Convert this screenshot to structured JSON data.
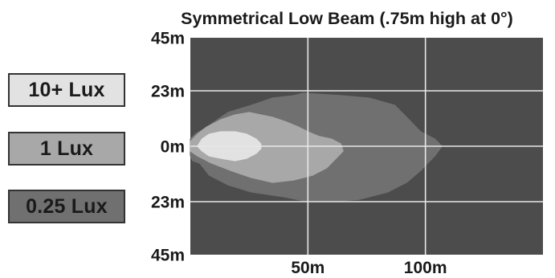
{
  "chart_data": {
    "type": "heatmap",
    "title": "Symmetrical Low Beam (.75m high at 0°)",
    "xlabel": "",
    "ylabel": "",
    "xlim": [
      0,
      150
    ],
    "ylim": [
      -45,
      45
    ],
    "x_ticks": [
      {
        "value": 50,
        "label": "50m"
      },
      {
        "value": 100,
        "label": "100m"
      }
    ],
    "y_ticks": [
      {
        "value": 45,
        "label": "45m"
      },
      {
        "value": 23,
        "label": "23m"
      },
      {
        "value": 0,
        "label": "0m"
      },
      {
        "value": -23,
        "label": "23m"
      },
      {
        "value": -45,
        "label": "45m"
      }
    ],
    "grid": true,
    "legend_position": "left",
    "background_color": "#4c4c4c",
    "grid_color": "#e8e8e8",
    "series": [
      {
        "name": "0.25 Lux",
        "color": "#707070",
        "outline": [
          [
            0,
            -4
          ],
          [
            1,
            -6
          ],
          [
            4,
            -7
          ],
          [
            8,
            -12
          ],
          [
            16,
            -16
          ],
          [
            26,
            -19
          ],
          [
            40,
            -21
          ],
          [
            50,
            -23
          ],
          [
            60,
            -23
          ],
          [
            72,
            -22
          ],
          [
            84,
            -19
          ],
          [
            92,
            -15
          ],
          [
            98,
            -10
          ],
          [
            104,
            -4
          ],
          [
            107,
            0
          ],
          [
            104,
            3
          ],
          [
            98,
            6
          ],
          [
            92,
            12
          ],
          [
            87,
            17
          ],
          [
            76,
            20
          ],
          [
            64,
            21
          ],
          [
            48,
            22
          ],
          [
            44,
            21
          ],
          [
            35,
            20
          ],
          [
            26,
            17
          ],
          [
            16,
            14
          ],
          [
            7,
            8
          ],
          [
            2,
            5
          ],
          [
            0,
            3
          ]
        ]
      },
      {
        "name": "1 Lux",
        "color": "#a8a8a8",
        "outline": [
          [
            0,
            -2
          ],
          [
            3,
            -4
          ],
          [
            9,
            -7
          ],
          [
            17,
            -10
          ],
          [
            26,
            -13
          ],
          [
            35,
            -15
          ],
          [
            44,
            -14
          ],
          [
            52,
            -12
          ],
          [
            58,
            -9
          ],
          [
            62,
            -5
          ],
          [
            65,
            -2
          ],
          [
            64,
            1
          ],
          [
            60,
            3
          ],
          [
            55,
            4
          ],
          [
            50,
            6
          ],
          [
            46,
            8
          ],
          [
            41,
            10
          ],
          [
            35,
            12
          ],
          [
            30,
            13
          ],
          [
            25,
            14
          ],
          [
            19,
            13
          ],
          [
            13,
            11
          ],
          [
            7,
            8
          ],
          [
            3,
            5
          ],
          [
            0,
            2
          ]
        ]
      },
      {
        "name": "10+ Lux",
        "color": "#e2e2e2",
        "outline": [
          [
            3,
            0
          ],
          [
            5,
            -2
          ],
          [
            8,
            -4
          ],
          [
            13,
            -5
          ],
          [
            19,
            -6
          ],
          [
            24,
            -5
          ],
          [
            28,
            -3
          ],
          [
            30,
            -1
          ],
          [
            30,
            1
          ],
          [
            28,
            3
          ],
          [
            24,
            5
          ],
          [
            19,
            6
          ],
          [
            13,
            6
          ],
          [
            8,
            5
          ],
          [
            5,
            3
          ]
        ]
      }
    ]
  }
}
